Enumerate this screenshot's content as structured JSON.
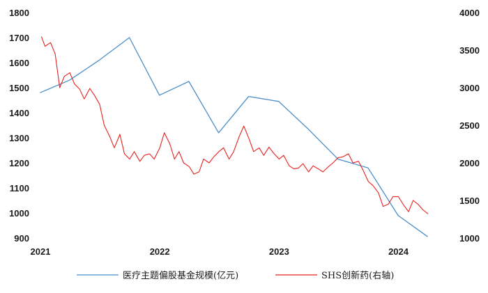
{
  "chart_data": {
    "type": "line",
    "left_axis": {
      "ylim": [
        900,
        1800
      ],
      "ticks": [
        "1800",
        "1700",
        "1600",
        "1500",
        "1400",
        "1300",
        "1200",
        "1100",
        "1000",
        "900"
      ]
    },
    "right_axis": {
      "ylim": [
        1000,
        4000
      ],
      "ticks": [
        "4000",
        "3500",
        "3000",
        "2500",
        "2000",
        "1500",
        "1000"
      ]
    },
    "x_axis": {
      "range": [
        2021.0,
        2024.4
      ],
      "ticks": [
        {
          "value": 2021,
          "label": "2021"
        },
        {
          "value": 2022,
          "label": "2022"
        },
        {
          "value": 2023,
          "label": "2023"
        },
        {
          "value": 2024,
          "label": "2024"
        }
      ]
    },
    "grid": false,
    "legend_position": "bottom-center",
    "series": [
      {
        "name": "医疗主题偏股基金规模(亿元)",
        "axis": "left",
        "color": "#4a8ec9",
        "x": [
          "2020-12-31",
          "2021-03-31",
          "2021-06-30",
          "2021-09-30",
          "2021-12-31",
          "2022-03-31",
          "2022-06-30",
          "2022-09-30",
          "2022-12-31",
          "2023-03-31",
          "2023-06-30",
          "2023-09-30",
          "2023-12-31",
          "2024-03-31"
        ],
        "values": [
          1480,
          1530,
          1610,
          1700,
          1470,
          1525,
          1320,
          1465,
          1445,
          1335,
          1215,
          1180,
          990,
          905
        ]
      },
      {
        "name": "SHS创新药(右轴)",
        "axis": "right",
        "color": "#e8201e",
        "x": [
          "2021-01-04",
          "2021-01-15",
          "2021-02-01",
          "2021-02-15",
          "2021-03-01",
          "2021-03-15",
          "2021-04-01",
          "2021-04-15",
          "2021-05-01",
          "2021-05-15",
          "2021-06-01",
          "2021-06-15",
          "2021-07-01",
          "2021-07-15",
          "2021-08-01",
          "2021-08-15",
          "2021-09-01",
          "2021-09-15",
          "2021-10-01",
          "2021-10-15",
          "2021-11-01",
          "2021-11-15",
          "2021-12-01",
          "2021-12-15",
          "2022-01-01",
          "2022-01-15",
          "2022-02-01",
          "2022-02-15",
          "2022-03-01",
          "2022-03-15",
          "2022-04-01",
          "2022-04-15",
          "2022-05-01",
          "2022-05-15",
          "2022-06-01",
          "2022-06-15",
          "2022-07-01",
          "2022-07-15",
          "2022-08-01",
          "2022-08-15",
          "2022-09-01",
          "2022-09-15",
          "2022-10-01",
          "2022-10-15",
          "2022-11-01",
          "2022-11-15",
          "2022-12-01",
          "2022-12-15",
          "2023-01-01",
          "2023-01-15",
          "2023-02-01",
          "2023-02-15",
          "2023-03-01",
          "2023-03-15",
          "2023-04-01",
          "2023-04-15",
          "2023-05-01",
          "2023-05-15",
          "2023-06-01",
          "2023-06-15",
          "2023-07-01",
          "2023-07-15",
          "2023-08-01",
          "2023-08-15",
          "2023-09-01",
          "2023-09-15",
          "2023-10-01",
          "2023-10-15",
          "2023-11-01",
          "2023-11-15",
          "2023-12-01",
          "2023-12-15",
          "2024-01-01",
          "2024-01-15",
          "2024-02-01",
          "2024-02-15",
          "2024-03-01",
          "2024-03-15",
          "2024-04-01"
        ],
        "values": [
          3680,
          3550,
          3600,
          3450,
          3000,
          3150,
          3200,
          3050,
          2980,
          2850,
          2990,
          2900,
          2780,
          2500,
          2350,
          2200,
          2380,
          2120,
          2050,
          2150,
          2020,
          2100,
          2120,
          2050,
          2200,
          2400,
          2250,
          2050,
          2150,
          2000,
          1950,
          1850,
          1880,
          2050,
          2000,
          2080,
          2150,
          2200,
          2050,
          2150,
          2350,
          2490,
          2320,
          2150,
          2200,
          2100,
          2210,
          2130,
          2050,
          2100,
          1960,
          1920,
          1930,
          1990,
          1880,
          1960,
          1920,
          1880,
          1950,
          2000,
          2070,
          2080,
          2120,
          2000,
          2020,
          1900,
          1750,
          1700,
          1600,
          1420,
          1450,
          1550,
          1550,
          1450,
          1350,
          1500,
          1450,
          1380,
          1320
        ]
      }
    ]
  }
}
